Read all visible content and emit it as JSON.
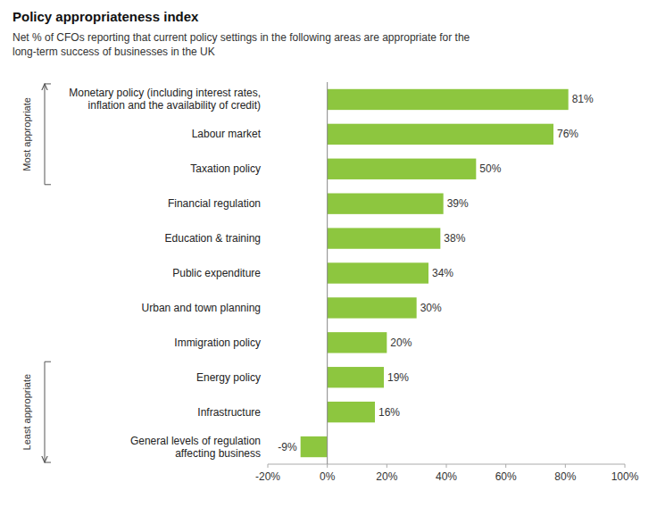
{
  "chart_data": {
    "type": "bar",
    "orientation": "horizontal",
    "title": "Policy appropriateness index",
    "subtitle": "Net % of CFOs reporting that current policy settings in the following areas are appropriate for the\nlong-term success of businesses in the UK",
    "categories": [
      "Monetary policy (including interest rates,\ninflation and the availability of credit)",
      "Labour market",
      "Taxation policy",
      "Financial regulation",
      "Education & training",
      "Public expenditure",
      "Urban and town planning",
      "Immigration policy",
      "Energy policy",
      "Infrastructure",
      "General levels of regulation\naffecting business"
    ],
    "values": [
      81,
      76,
      50,
      39,
      38,
      34,
      30,
      20,
      19,
      16,
      -9
    ],
    "value_labels": [
      "81%",
      "76%",
      "50%",
      "39%",
      "38%",
      "34%",
      "30%",
      "20%",
      "19%",
      "16%",
      "-9%"
    ],
    "data_labels": true,
    "color": "#8dc63f",
    "grid": false,
    "xlim": [
      -20,
      100
    ],
    "xticks": [
      {
        "value": -20,
        "label": "-20%"
      },
      {
        "value": 0,
        "label": "0%"
      },
      {
        "value": 20,
        "label": "20%"
      },
      {
        "value": 40,
        "label": "40%"
      },
      {
        "value": 60,
        "label": "60%"
      },
      {
        "value": 80,
        "label": "80%"
      },
      {
        "value": 100,
        "label": "100%"
      }
    ],
    "annotations": [
      "Most appropriate",
      "Least appropriate"
    ]
  }
}
